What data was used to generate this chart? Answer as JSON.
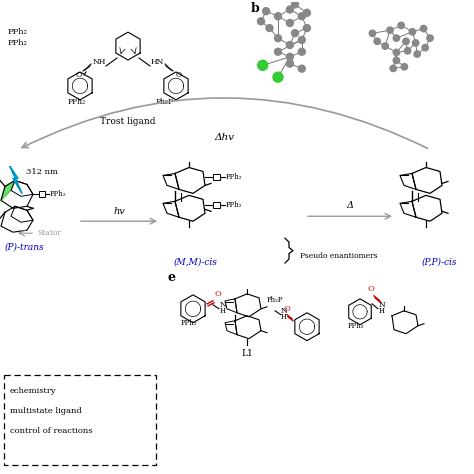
{
  "bg_color": "#ffffff",
  "black": "#000000",
  "blue": "#0000cc",
  "red": "#cc0000",
  "gray": "#999999",
  "dgray": "#666666",
  "cyan": "#00ccee",
  "green": "#33cc33",
  "label_b": "b",
  "label_e": "e",
  "trost_label": "Trost ligand",
  "pph2_a": "PPh₂",
  "pph2_b": "PPh₂",
  "nm312": "312 nm",
  "stator": "Stator",
  "ptrans": "(P)-trans",
  "mmcis": "(M,M)-cis",
  "ppcis": "(P,P)-cis",
  "pseudo": "Pseudo enantiomers",
  "hv": "hv",
  "dhv": "Δhv",
  "delta": "Δ",
  "l1": "L1",
  "box_lines": [
    "echemistry",
    "multistate ligand",
    "control of reactions"
  ]
}
